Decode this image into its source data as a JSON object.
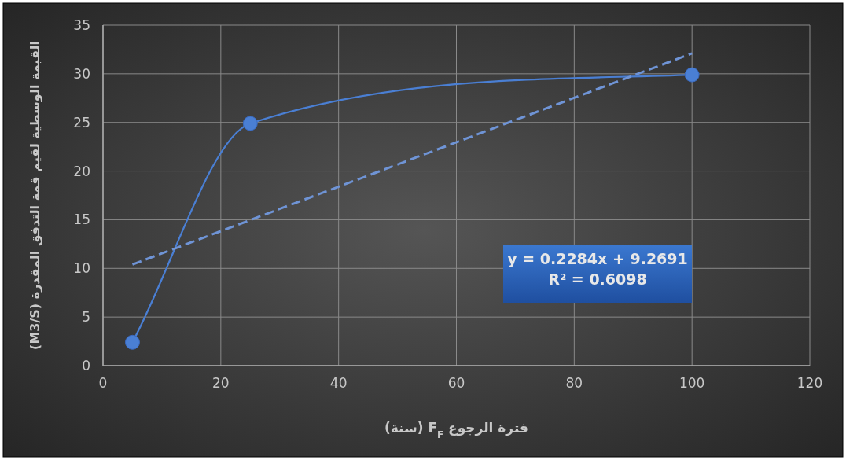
{
  "chart_data": {
    "type": "line",
    "xlabel": "فترة الرجوع F$_{F}$ (سنة)",
    "ylabel": "القيمة الوسطية لقيم قمة التدفق المقدرة (M3/S)",
    "xlim": [
      0,
      120
    ],
    "xticks": [
      0,
      20,
      40,
      60,
      80,
      100,
      120
    ],
    "ylim": [
      0,
      35
    ],
    "yticks": [
      0,
      5,
      10,
      15,
      20,
      25,
      30,
      35
    ],
    "grid": true,
    "series": [
      {
        "type": "line",
        "color": "#4a7fd4",
        "x": [
          5,
          25,
          100
        ],
        "values": [
          2.4,
          24.9,
          29.9
        ],
        "marker": "circle",
        "line_style": "solid"
      },
      {
        "type": "line",
        "color": "#6f94d6",
        "x": [
          5,
          100
        ],
        "values": [
          10.4,
          32.1
        ],
        "marker": "none",
        "line_style": "dashed"
      }
    ],
    "annotations": [
      "y = 0.2284x + 9.2691",
      "R² = 0.6098"
    ]
  }
}
